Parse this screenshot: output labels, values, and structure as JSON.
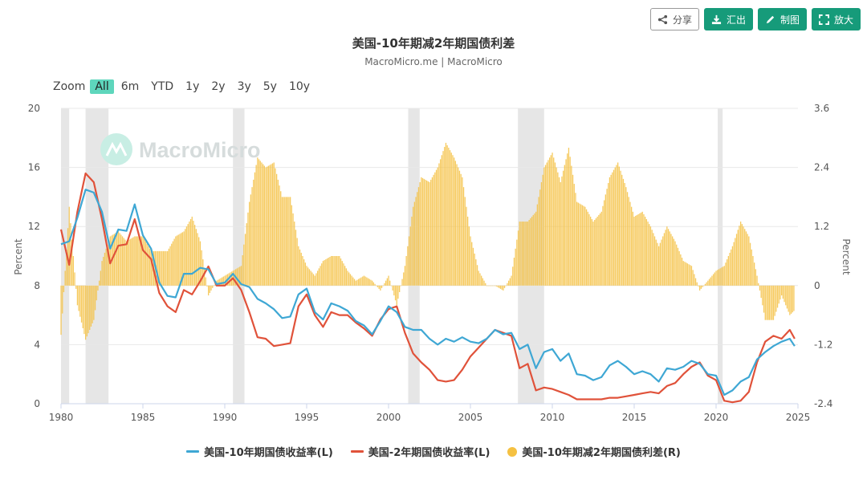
{
  "toolbar": {
    "share_label": "分享",
    "export_label": "汇出",
    "draw_label": "制图",
    "zoom_label": "放大"
  },
  "zoom": {
    "label": "Zoom",
    "options": [
      "All",
      "6m",
      "YTD",
      "1y",
      "2y",
      "3y",
      "5y",
      "10y"
    ],
    "active": "All"
  },
  "watermark": "MacroMicro",
  "colors": {
    "ten_year": "#3ea7d4",
    "two_year": "#e0523a",
    "spread": "#f5c142",
    "recession": "#e6e6e6",
    "brand_button": "#169b7a",
    "zoom_active": "#5ed6bc"
  },
  "chart_data": {
    "type": "line",
    "title": "美国-10年期减2年期国债利差",
    "subtitle": "MacroMicro.me | MacroMicro",
    "ylabel_left": "Percent",
    "ylabel_right": "Percent",
    "xlim": [
      1980,
      2025
    ],
    "ylim_left": [
      0,
      20
    ],
    "ylim_right": [
      -2.4,
      3.6
    ],
    "x_ticks": [
      "1980",
      "1985",
      "1990",
      "1995",
      "2000",
      "2005",
      "2010",
      "2015",
      "2020",
      "2025"
    ],
    "y_ticks_left": [
      "0",
      "4",
      "8",
      "12",
      "16",
      "20"
    ],
    "y_ticks_right": [
      "-2.4",
      "-1.2",
      "0",
      "1.2",
      "2.4",
      "3.6"
    ],
    "grid": true,
    "legend_position": "bottom",
    "recessions": [
      [
        1980.0,
        1980.5
      ],
      [
        1981.5,
        1982.9
      ],
      [
        1990.5,
        1991.2
      ],
      [
        2001.2,
        2001.9
      ],
      [
        2007.9,
        2009.5
      ],
      [
        2020.1,
        2020.4
      ]
    ],
    "x": [
      1980.0,
      1980.5,
      1981.0,
      1981.5,
      1982.0,
      1982.5,
      1983.0,
      1983.5,
      1984.0,
      1984.5,
      1985.0,
      1985.5,
      1986.0,
      1986.5,
      1987.0,
      1987.5,
      1988.0,
      1988.5,
      1989.0,
      1989.5,
      1990.0,
      1990.5,
      1991.0,
      1991.5,
      1992.0,
      1992.5,
      1993.0,
      1993.5,
      1994.0,
      1994.5,
      1995.0,
      1995.5,
      1996.0,
      1996.5,
      1997.0,
      1997.5,
      1998.0,
      1998.5,
      1999.0,
      1999.5,
      2000.0,
      2000.5,
      2001.0,
      2001.5,
      2002.0,
      2002.5,
      2003.0,
      2003.5,
      2004.0,
      2004.5,
      2005.0,
      2005.5,
      2006.0,
      2006.5,
      2007.0,
      2007.5,
      2008.0,
      2008.5,
      2009.0,
      2009.5,
      2010.0,
      2010.5,
      2011.0,
      2011.5,
      2012.0,
      2012.5,
      2013.0,
      2013.5,
      2014.0,
      2014.5,
      2015.0,
      2015.5,
      2016.0,
      2016.5,
      2017.0,
      2017.5,
      2018.0,
      2018.5,
      2019.0,
      2019.5,
      2020.0,
      2020.5,
      2021.0,
      2021.5,
      2022.0,
      2022.5,
      2023.0,
      2023.5,
      2024.0,
      2024.5,
      2024.8
    ],
    "series": [
      {
        "name": "美国-10年期国债收益率(L)",
        "axis": "left",
        "values": [
          10.8,
          11.0,
          12.6,
          14.5,
          14.3,
          13.0,
          10.5,
          11.8,
          11.7,
          13.5,
          11.4,
          10.5,
          8.2,
          7.3,
          7.2,
          8.8,
          8.8,
          9.2,
          9.1,
          8.1,
          8.2,
          8.8,
          8.1,
          7.9,
          7.1,
          6.8,
          6.4,
          5.8,
          5.9,
          7.4,
          7.8,
          6.2,
          5.7,
          6.8,
          6.6,
          6.3,
          5.6,
          5.3,
          4.7,
          5.6,
          6.6,
          6.2,
          5.2,
          5.0,
          5.0,
          4.4,
          4.0,
          4.4,
          4.2,
          4.5,
          4.2,
          4.1,
          4.4,
          5.0,
          4.7,
          4.8,
          3.7,
          4.0,
          2.4,
          3.5,
          3.7,
          2.9,
          3.4,
          2.0,
          1.9,
          1.6,
          1.8,
          2.6,
          2.9,
          2.5,
          2.0,
          2.2,
          2.0,
          1.5,
          2.4,
          2.3,
          2.5,
          2.9,
          2.7,
          2.0,
          1.9,
          0.6,
          0.9,
          1.5,
          1.8,
          3.0,
          3.5,
          3.9,
          4.2,
          4.4,
          3.9
        ]
      },
      {
        "name": "美国-2年期国债收益率(L)",
        "axis": "left",
        "values": [
          11.8,
          9.4,
          13.0,
          15.6,
          15.0,
          12.5,
          9.5,
          10.7,
          10.8,
          12.5,
          10.4,
          9.8,
          7.5,
          6.6,
          6.2,
          7.7,
          7.4,
          8.3,
          9.3,
          8.0,
          8.0,
          8.5,
          7.7,
          6.2,
          4.5,
          4.4,
          3.9,
          4.0,
          4.1,
          6.6,
          7.4,
          6.0,
          5.2,
          6.2,
          6.0,
          6.0,
          5.5,
          5.1,
          4.6,
          5.7,
          6.4,
          6.6,
          4.8,
          3.4,
          2.8,
          2.3,
          1.6,
          1.5,
          1.6,
          2.3,
          3.2,
          3.8,
          4.4,
          5.0,
          4.8,
          4.6,
          2.4,
          2.7,
          0.9,
          1.1,
          1.0,
          0.8,
          0.6,
          0.3,
          0.3,
          0.3,
          0.3,
          0.4,
          0.4,
          0.5,
          0.6,
          0.7,
          0.8,
          0.7,
          1.2,
          1.4,
          2.0,
          2.5,
          2.8,
          1.9,
          1.6,
          0.2,
          0.1,
          0.2,
          0.8,
          2.8,
          4.2,
          4.6,
          4.4,
          5.0,
          4.4
        ]
      },
      {
        "name": "美国-10年期减2年期国债利差(R)",
        "axis": "right",
        "values": [
          -1.0,
          1.6,
          -0.4,
          -1.1,
          -0.7,
          0.5,
          1.0,
          1.1,
          0.9,
          1.0,
          1.0,
          0.7,
          0.7,
          0.7,
          1.0,
          1.1,
          1.4,
          0.9,
          -0.2,
          0.1,
          0.2,
          0.3,
          0.4,
          1.7,
          2.6,
          2.4,
          2.5,
          1.8,
          1.8,
          0.8,
          0.4,
          0.2,
          0.5,
          0.6,
          0.6,
          0.3,
          0.1,
          0.2,
          0.1,
          -0.1,
          0.2,
          -0.4,
          0.4,
          1.6,
          2.2,
          2.1,
          2.4,
          2.9,
          2.6,
          2.2,
          1.0,
          0.3,
          0.0,
          0.0,
          -0.1,
          0.2,
          1.3,
          1.3,
          1.5,
          2.4,
          2.7,
          2.1,
          2.8,
          1.7,
          1.6,
          1.3,
          1.5,
          2.2,
          2.5,
          2.0,
          1.4,
          1.5,
          1.2,
          0.8,
          1.2,
          0.9,
          0.5,
          0.4,
          -0.1,
          0.1,
          0.3,
          0.4,
          0.8,
          1.3,
          1.0,
          0.2,
          -0.7,
          -0.7,
          -0.2,
          -0.6,
          -0.5
        ]
      }
    ]
  }
}
